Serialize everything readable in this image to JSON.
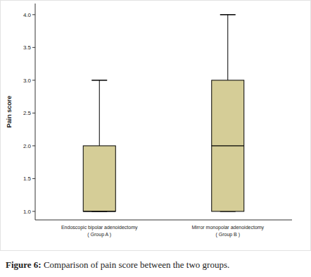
{
  "chart_data": {
    "type": "box",
    "caption": "Figure 6: Comparison of pain score between the two groups.",
    "y_label": "Pain score",
    "categories": [
      "Endoscopic bipolar adenoidectomy\n( Group A )",
      "Mirror monopolar adenoidectomy\n( Group B )"
    ],
    "boxes": [
      {
        "min": 1,
        "q1": 1,
        "median": 1,
        "q3": 2,
        "max": 3
      },
      {
        "min": 1,
        "q1": 1,
        "median": 2,
        "q3": 3,
        "max": 4
      }
    ],
    "color": "#d5cd97",
    "ylim": [
      0.87,
      4.17
    ],
    "yticks": [
      {
        "value": 1,
        "label": "1.0"
      },
      {
        "value": 1.5,
        "label": "1.5"
      },
      {
        "value": 2,
        "label": "2.0"
      },
      {
        "value": 2.5,
        "label": "2.5"
      },
      {
        "value": 3,
        "label": "3.0"
      },
      {
        "value": 3.5,
        "label": "3.5"
      },
      {
        "value": 4,
        "label": "4.0"
      }
    ],
    "grid": false
  }
}
